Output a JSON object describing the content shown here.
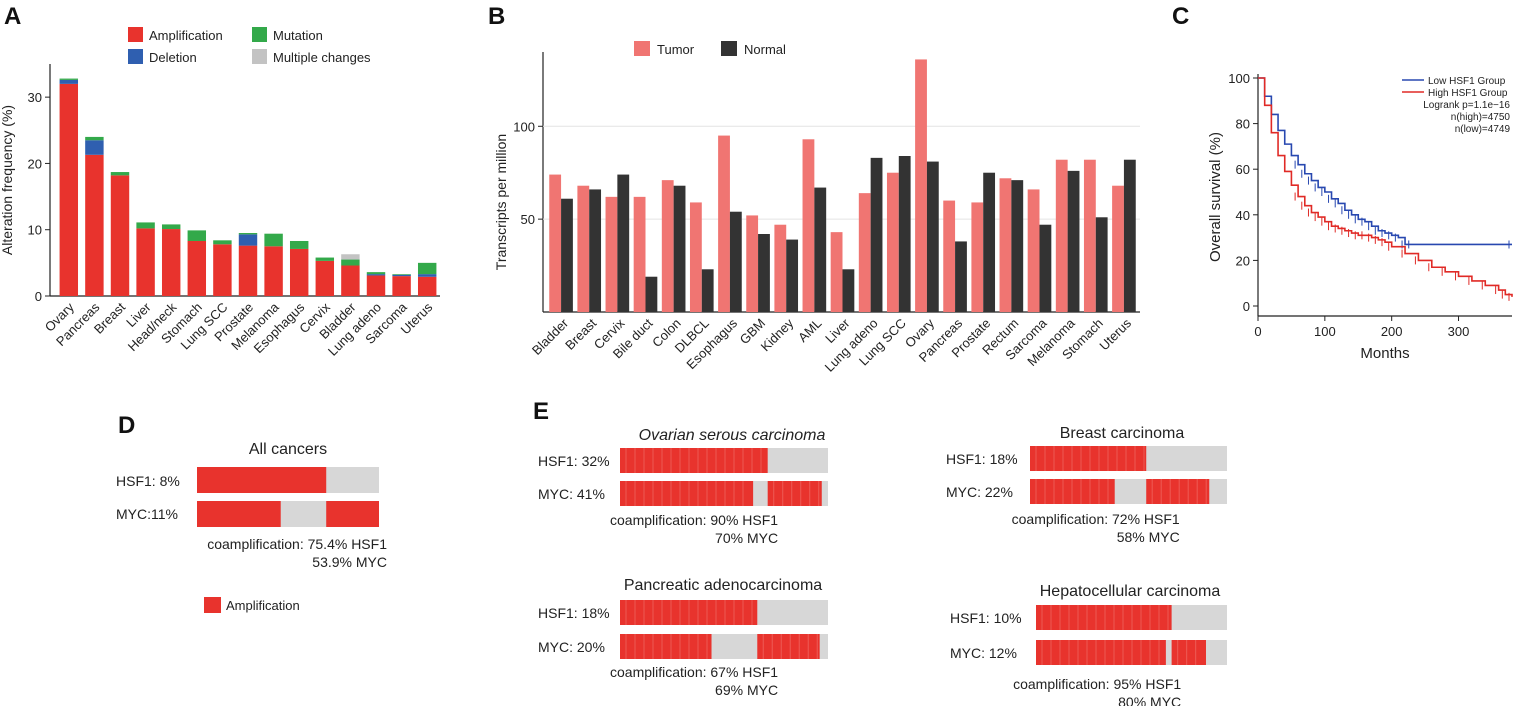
{
  "figure": {
    "panel_labels": [
      "A",
      "B",
      "C",
      "D",
      "E"
    ],
    "colors": {
      "amplification": "#e8332d",
      "deletion": "#2f5fb0",
      "mutation": "#33a94a",
      "multiple": "#c3c3c3",
      "tumor": "#f07572",
      "normal": "#333333",
      "low_group": "#2848b0",
      "high_group": "#e02a26",
      "neutral": "#d7d7d7"
    }
  },
  "chart_data": [
    {
      "panel": "A",
      "type": "bar",
      "stacked": true,
      "ylabel": "Alteration frequency (%)",
      "ylim": [
        0,
        35
      ],
      "yticks": [
        0,
        10,
        20,
        30
      ],
      "categories": [
        "Ovary",
        "Pancreas",
        "Breast",
        "Liver",
        "Head/neck",
        "Stomach",
        "Lung SCC",
        "Prostate",
        "Melanoma",
        "Esophagus",
        "Cervix",
        "Bladder",
        "Lung adeno",
        "Sarcoma",
        "Uterus"
      ],
      "series": [
        {
          "name": "Amplification",
          "values": [
            32.0,
            21.3,
            18.2,
            10.2,
            10.1,
            8.3,
            7.8,
            7.6,
            7.5,
            7.1,
            5.3,
            4.6,
            3.1,
            3.0,
            2.9
          ]
        },
        {
          "name": "Deletion",
          "values": [
            0.6,
            2.2,
            0.0,
            0.0,
            0.0,
            0.0,
            0.0,
            1.7,
            0.0,
            0.0,
            0.0,
            0.0,
            0.2,
            0.2,
            0.4
          ]
        },
        {
          "name": "Mutation",
          "values": [
            0.2,
            0.5,
            0.5,
            0.9,
            0.7,
            1.6,
            0.6,
            0.2,
            1.9,
            1.2,
            0.5,
            0.9,
            0.3,
            0.1,
            1.7
          ]
        },
        {
          "name": "Multiple changes",
          "values": [
            0.0,
            0.0,
            0.0,
            0.0,
            0.0,
            0.0,
            0.0,
            0.0,
            0.0,
            0.0,
            0.0,
            0.8,
            0.0,
            0.0,
            0.0
          ]
        }
      ],
      "legend": [
        "Amplification",
        "Mutation",
        "Deletion",
        "Multiple changes"
      ]
    },
    {
      "panel": "B",
      "type": "bar",
      "ylabel": "Transcripts per million",
      "ylim": [
        0,
        140
      ],
      "yticks": [
        50,
        100
      ],
      "grid": true,
      "categories": [
        "Bladder",
        "Breast",
        "Cervix",
        "Bile duct",
        "Colon",
        "DLBCL",
        "Esophagus",
        "GBM",
        "Kidney",
        "AML",
        "Liver",
        "Lung adeno",
        "Lung SCC",
        "Ovary",
        "Pancreas",
        "Prostate",
        "Rectum",
        "Sarcoma",
        "Melanoma",
        "Stomach",
        "Uterus"
      ],
      "series": [
        {
          "name": "Tumor",
          "values": [
            74,
            68,
            62,
            62,
            71,
            59,
            95,
            52,
            47,
            93,
            43,
            64,
            75,
            136,
            60,
            59,
            72,
            66,
            82,
            82,
            68
          ]
        },
        {
          "name": "Normal",
          "values": [
            61,
            66,
            74,
            19,
            68,
            23,
            54,
            42,
            39,
            67,
            23,
            83,
            84,
            81,
            38,
            75,
            71,
            47,
            76,
            51,
            82
          ]
        }
      ],
      "legend": [
        "Tumor",
        "Normal"
      ]
    },
    {
      "panel": "C",
      "type": "line",
      "xlabel": "Months",
      "ylabel": "Overall survival (%)",
      "xlim": [
        0,
        380
      ],
      "ylim": [
        0,
        100
      ],
      "xticks": [
        0,
        100,
        200,
        300
      ],
      "yticks": [
        0,
        20,
        40,
        60,
        80,
        100
      ],
      "series": [
        {
          "name": "Low HSF1 Group",
          "x": [
            0,
            10,
            20,
            30,
            40,
            50,
            60,
            70,
            80,
            90,
            100,
            110,
            120,
            130,
            140,
            150,
            160,
            170,
            180,
            190,
            200,
            210,
            220,
            230,
            380
          ],
          "y": [
            100,
            92,
            84,
            77,
            71,
            66,
            62,
            58,
            55,
            52,
            50,
            47,
            45,
            42,
            40,
            38,
            37,
            35,
            33,
            32,
            31,
            30,
            27,
            27,
            27
          ]
        },
        {
          "name": "High HSF1 Group",
          "x": [
            0,
            10,
            20,
            30,
            40,
            50,
            60,
            70,
            80,
            90,
            100,
            110,
            120,
            130,
            140,
            150,
            160,
            170,
            180,
            190,
            200,
            220,
            240,
            260,
            280,
            300,
            320,
            340,
            360,
            370,
            380
          ],
          "y": [
            100,
            88,
            76,
            66,
            59,
            53,
            48,
            44,
            41,
            39,
            37,
            35,
            34,
            33,
            32,
            31,
            31,
            30,
            29,
            28,
            26,
            23,
            20,
            17,
            15,
            13,
            11,
            9,
            7,
            5,
            4
          ]
        }
      ],
      "legend": [
        "Low HSF1 Group",
        "High HSF1 Group"
      ],
      "annotations": [
        "Logrank p=1.1e−16",
        "n(high)=4750",
        "n(low)=4749"
      ]
    }
  ],
  "panel_d": {
    "title": "All cancers",
    "hsf1_label": "HSF1: 8%",
    "myc_label": "MYC:11%",
    "coamp_line1": "coamplification: 75.4% HSF1",
    "coamp_line2": "53.9% MYC",
    "legend_label": "Amplification",
    "hsf1_segments": [
      [
        0,
        0.71
      ]
    ],
    "myc_segments": [
      [
        0,
        0.46
      ],
      [
        0.71,
        1.0
      ]
    ]
  },
  "panel_e": [
    {
      "title": "Ovarian serous carcinoma",
      "italic": true,
      "hsf1_label": "HSF1: 32%",
      "myc_label": "MYC: 41%",
      "coamp_line1": "coamplification: 90% HSF1",
      "coamp_line2": "70% MYC",
      "hsf1_segments": [
        [
          0,
          0.71
        ]
      ],
      "myc_segments": [
        [
          0,
          0.64
        ],
        [
          0.71,
          0.97
        ]
      ]
    },
    {
      "title": "Breast carcinoma",
      "italic": false,
      "hsf1_label": "HSF1: 18%",
      "myc_label": "MYC: 22%",
      "coamp_line1": "coamplification: 72% HSF1",
      "coamp_line2": "58% MYC",
      "hsf1_segments": [
        [
          0,
          0.59
        ]
      ],
      "myc_segments": [
        [
          0,
          0.43
        ],
        [
          0.59,
          0.91
        ]
      ]
    },
    {
      "title": "Pancreatic adenocarcinoma",
      "italic": false,
      "hsf1_label": "HSF1: 18%",
      "myc_label": "MYC: 20%",
      "coamp_line1": "coamplification: 67% HSF1",
      "coamp_line2": "69% MYC",
      "hsf1_segments": [
        [
          0,
          0.66
        ]
      ],
      "myc_segments": [
        [
          0,
          0.44
        ],
        [
          0.66,
          0.96
        ]
      ]
    },
    {
      "title": "Hepatocellular carcinoma",
      "italic": false,
      "hsf1_label": "HSF1: 10%",
      "myc_label": "MYC: 12%",
      "coamp_line1": "coamplification: 95% HSF1",
      "coamp_line2": "80% MYC",
      "hsf1_segments": [
        [
          0,
          0.71
        ]
      ],
      "myc_segments": [
        [
          0,
          0.68
        ],
        [
          0.71,
          0.89
        ]
      ]
    }
  ]
}
